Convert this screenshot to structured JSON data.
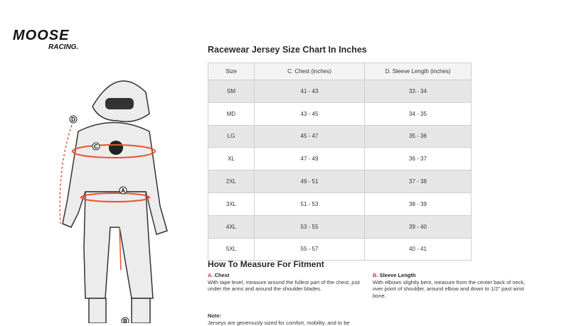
{
  "logo": {
    "text": "MOOSE RACING"
  },
  "title": "Racewear Jersey Size Chart In Inches",
  "table": {
    "headers": [
      "Size",
      "C. Chest (inches)",
      "D. Sleeve Length (inches)"
    ],
    "rows": [
      [
        "SM",
        "41 - 43",
        "33 - 34"
      ],
      [
        "MD",
        "43 - 45",
        "34 - 35"
      ],
      [
        "LG",
        "45 - 47",
        "35 - 36"
      ],
      [
        "XL",
        "47 - 49",
        "36 - 37"
      ],
      [
        "2XL",
        "49 - 51",
        "37 - 38"
      ],
      [
        "3XL",
        "51 - 53",
        "38 - 39"
      ],
      [
        "4XL",
        "53 - 55",
        "39 - 40"
      ],
      [
        "5XL",
        "55 - 57",
        "40 - 41"
      ]
    ]
  },
  "measure": {
    "heading": "How To Measure For Fitment",
    "chest": {
      "letter": "A.",
      "label": "Chest",
      "text": "With tape level, measure around the fullest part of the chest, just under the arms and around the shoulder blades."
    },
    "sleeve": {
      "letter": "B.",
      "label": "Sleeve Length",
      "text": "With elbows slightly bent, measure from the center back of neck, over point of shoulder, around elbow and down to 1/2\" past wrist bone."
    },
    "note_label": "Note:",
    "note_text": "Jerseys are generously sized for comfort, mobility, and to be"
  },
  "figure_markers": [
    "A",
    "B",
    "C",
    "D"
  ],
  "colors": {
    "accent": "#e8542a",
    "row_shade": "#e6e6e6",
    "letter_red": "#c8333a"
  }
}
